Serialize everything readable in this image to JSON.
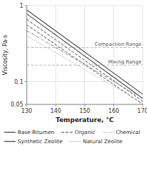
{
  "chart_data": {
    "type": "line",
    "xlabel": "Temperature, °C",
    "ylabel": "Viscosity, Pa-s",
    "x": [
      130,
      170
    ],
    "xlim": [
      130,
      170
    ],
    "xticks": [
      130,
      140,
      150,
      160,
      170
    ],
    "ylim": [
      0.05,
      1.0
    ],
    "yticks": [
      0.05,
      0.1,
      1
    ],
    "log": "y",
    "grid": true,
    "series": [
      {
        "color": "#444444",
        "line_style": "solid",
        "values": [
          0.88,
          0.068
        ]
      },
      {
        "color": "#444444",
        "line_style": "solid",
        "values": [
          0.78,
          0.06
        ]
      },
      {
        "color": "#777777",
        "line_style": "dashed",
        "values": [
          0.66,
          0.055
        ]
      },
      {
        "color": "#777777",
        "line_style": "dashed",
        "values": [
          0.56,
          0.05
        ]
      },
      {
        "color": "#999999",
        "line_style": "dashdot",
        "values": [
          0.47,
          0.06
        ]
      },
      {
        "color": "#aaaaaa",
        "line_style": "dotted",
        "values": [
          0.4,
          0.052
        ]
      }
    ],
    "annotations": [
      {
        "text": "Compaction Range",
        "y": 0.28,
        "color": "#aaaaaa",
        "line_style": "dashed"
      },
      {
        "text": "Mixing Range",
        "y": 0.165,
        "color": "#aaaaaa",
        "line_style": "dashed"
      }
    ],
    "legend_entries": [
      {
        "label": "Base Bitumen",
        "color": "#444444",
        "line_style": "solid"
      },
      {
        "label": "Organic",
        "color": "#777777",
        "line_style": "dashed"
      },
      {
        "label": "Chemical",
        "color": "#aaaaaa",
        "line_style": "dotted"
      },
      {
        "label": "Synthetic Zeolite",
        "color": "#444444",
        "line_style": "solid"
      },
      {
        "label": "Natural Zeolite",
        "color": "#aaaaaa",
        "line_style": "dotted"
      }
    ]
  }
}
